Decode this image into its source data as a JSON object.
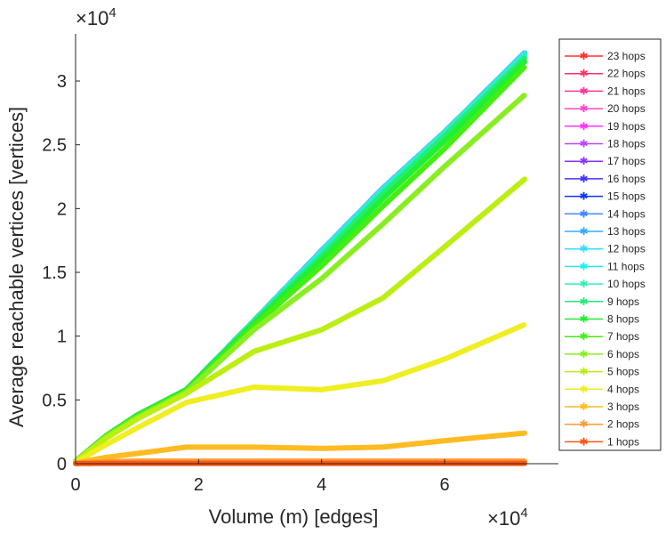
{
  "chart_data": {
    "type": "line",
    "title": "",
    "xlabel": "Volume (m) [edges]",
    "ylabel": "Average reachable vertices [vertices]",
    "x_exponent_label": "×10",
    "x_exponent": "4",
    "y_exponent_label": "×10",
    "y_exponent": "4",
    "xlim": [
      0,
      7.85
    ],
    "ylim": [
      0,
      3.37
    ],
    "xticks": [
      0,
      2,
      4,
      6
    ],
    "xtick_labels": [
      "0",
      "2",
      "4",
      "6"
    ],
    "yticks": [
      0,
      0.5,
      1,
      1.5,
      2,
      2.5,
      3
    ],
    "ytick_labels": [
      "0",
      "0.5",
      "1",
      "1.5",
      "2",
      "2.5",
      "3"
    ],
    "legend_position": "right-outside",
    "x": [
      0,
      0.5,
      1,
      1.8,
      2.9,
      4,
      5,
      6,
      7.3
    ],
    "series": [
      {
        "name": "23 hops",
        "color": "#ff3333",
        "values": [
          0.02,
          0.22,
          0.38,
          0.58,
          1.12,
          1.67,
          2.16,
          2.6,
          3.22
        ]
      },
      {
        "name": "22 hops",
        "color": "#ff3366",
        "values": [
          0.02,
          0.22,
          0.38,
          0.58,
          1.12,
          1.67,
          2.16,
          2.6,
          3.22
        ]
      },
      {
        "name": "21 hops",
        "color": "#ff3399",
        "values": [
          0.02,
          0.22,
          0.38,
          0.58,
          1.12,
          1.67,
          2.16,
          2.6,
          3.22
        ]
      },
      {
        "name": "20 hops",
        "color": "#ff44cc",
        "values": [
          0.02,
          0.22,
          0.38,
          0.58,
          1.12,
          1.67,
          2.16,
          2.6,
          3.22
        ]
      },
      {
        "name": "19 hops",
        "color": "#ff33ff",
        "values": [
          0.02,
          0.22,
          0.38,
          0.58,
          1.12,
          1.67,
          2.16,
          2.6,
          3.22
        ]
      },
      {
        "name": "18 hops",
        "color": "#bb44ff",
        "values": [
          0.02,
          0.22,
          0.38,
          0.58,
          1.12,
          1.67,
          2.16,
          2.6,
          3.22
        ]
      },
      {
        "name": "17 hops",
        "color": "#8833ff",
        "values": [
          0.02,
          0.22,
          0.38,
          0.58,
          1.12,
          1.67,
          2.16,
          2.6,
          3.22
        ]
      },
      {
        "name": "16 hops",
        "color": "#4433ff",
        "values": [
          0.02,
          0.22,
          0.38,
          0.58,
          1.12,
          1.67,
          2.16,
          2.6,
          3.22
        ]
      },
      {
        "name": "15 hops",
        "color": "#1133ff",
        "values": [
          0.02,
          0.22,
          0.38,
          0.58,
          1.12,
          1.67,
          2.16,
          2.6,
          3.22
        ]
      },
      {
        "name": "14 hops",
        "color": "#4488ff",
        "values": [
          0.02,
          0.22,
          0.38,
          0.58,
          1.12,
          1.67,
          2.16,
          2.6,
          3.22
        ]
      },
      {
        "name": "13 hops",
        "color": "#33aaff",
        "values": [
          0.02,
          0.22,
          0.38,
          0.58,
          1.12,
          1.67,
          2.16,
          2.6,
          3.22
        ]
      },
      {
        "name": "12 hops",
        "color": "#33ddff",
        "values": [
          0.02,
          0.22,
          0.38,
          0.58,
          1.12,
          1.67,
          2.16,
          2.6,
          3.22
        ]
      },
      {
        "name": "11 hops",
        "color": "#22eeee",
        "values": [
          0.02,
          0.22,
          0.38,
          0.58,
          1.12,
          1.66,
          2.15,
          2.6,
          3.21
        ]
      },
      {
        "name": "10 hops",
        "color": "#33eebb",
        "values": [
          0.02,
          0.22,
          0.38,
          0.58,
          1.12,
          1.65,
          2.14,
          2.59,
          3.2
        ]
      },
      {
        "name": "9 hops",
        "color": "#22ee77",
        "values": [
          0.02,
          0.22,
          0.38,
          0.58,
          1.11,
          1.63,
          2.12,
          2.57,
          3.18
        ]
      },
      {
        "name": "8 hops",
        "color": "#22ee33",
        "values": [
          0.02,
          0.22,
          0.38,
          0.58,
          1.1,
          1.6,
          2.08,
          2.53,
          3.15
        ]
      },
      {
        "name": "7 hops",
        "color": "#44ee11",
        "values": [
          0.02,
          0.22,
          0.37,
          0.57,
          1.08,
          1.55,
          2.02,
          2.47,
          3.11
        ]
      },
      {
        "name": "6 hops",
        "color": "#88ee22",
        "values": [
          0.02,
          0.21,
          0.36,
          0.56,
          1.05,
          1.45,
          1.88,
          2.33,
          2.89
        ]
      },
      {
        "name": "5 hops",
        "color": "#bbee11",
        "values": [
          0.02,
          0.2,
          0.35,
          0.55,
          0.88,
          1.05,
          1.3,
          1.7,
          2.23
        ]
      },
      {
        "name": "4 hops",
        "color": "#eeee22",
        "values": [
          0.01,
          0.15,
          0.28,
          0.48,
          0.6,
          0.58,
          0.65,
          0.82,
          1.09
        ]
      },
      {
        "name": "3 hops",
        "color": "#ffbb22",
        "values": [
          0.005,
          0.05,
          0.08,
          0.13,
          0.13,
          0.12,
          0.13,
          0.18,
          0.24
        ]
      },
      {
        "name": "2 hops",
        "color": "#ff9933",
        "values": [
          0.003,
          0.015,
          0.02,
          0.02,
          0.02,
          0.02,
          0.02,
          0.02,
          0.02
        ]
      },
      {
        "name": "1 hops",
        "color": "#ff5511",
        "values": [
          0.001,
          0.003,
          0.003,
          0.003,
          0.003,
          0.003,
          0.003,
          0.003,
          0.003
        ]
      }
    ]
  }
}
